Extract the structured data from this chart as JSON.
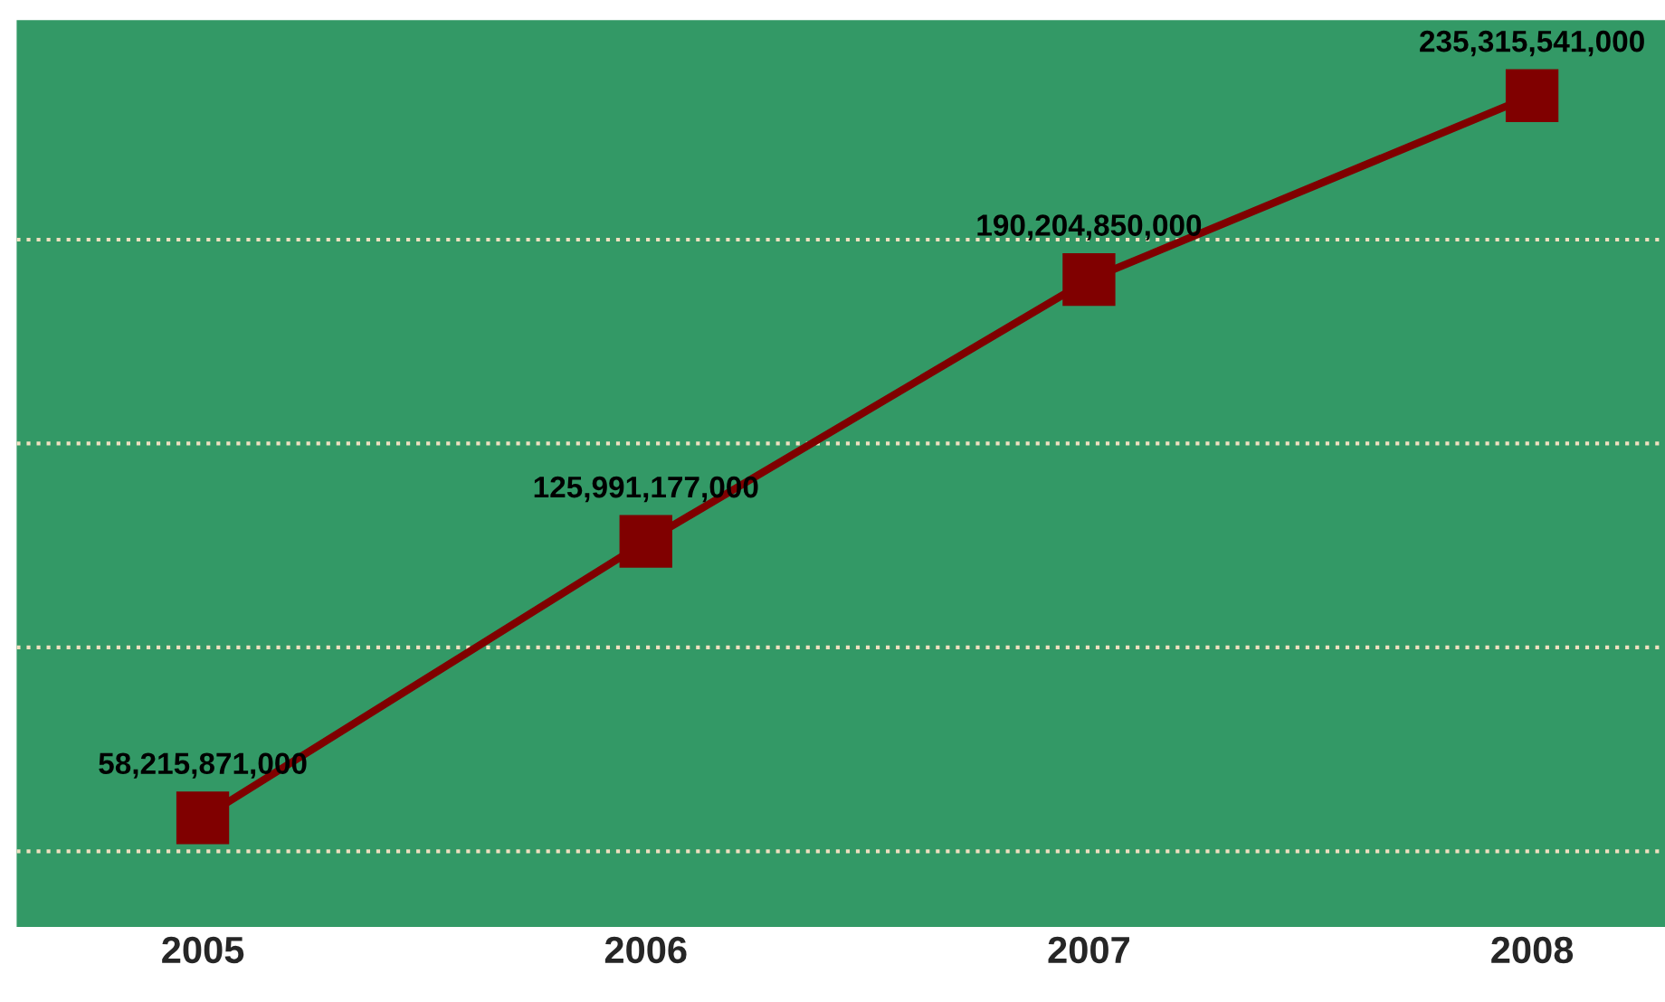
{
  "chart_data": {
    "type": "line",
    "categories": [
      "2005",
      "2006",
      "2007",
      "2008"
    ],
    "series": [
      {
        "color": "#800000",
        "values": [
          58215871000,
          125991177000,
          190204850000,
          235315541000
        ],
        "value_labels": [
          "58,215,871,000",
          "125,991,177,000",
          "190,204,850,000",
          "235,315,541,000"
        ]
      }
    ],
    "marker": "square",
    "line_style": "solid",
    "tick_labels": "x",
    "ref_lines": [
      {
        "axis": "y",
        "value": 50000000000,
        "color": "#f0e0c0",
        "line_style": "dotted"
      },
      {
        "axis": "y",
        "value": 100000000000,
        "color": "#f0e0c0",
        "line_style": "dotted"
      },
      {
        "axis": "y",
        "value": 150000000000,
        "color": "#f0e0c0",
        "line_style": "dotted"
      },
      {
        "axis": "y",
        "value": 200000000000,
        "color": "#f0e0c0",
        "line_style": "dotted"
      }
    ]
  }
}
